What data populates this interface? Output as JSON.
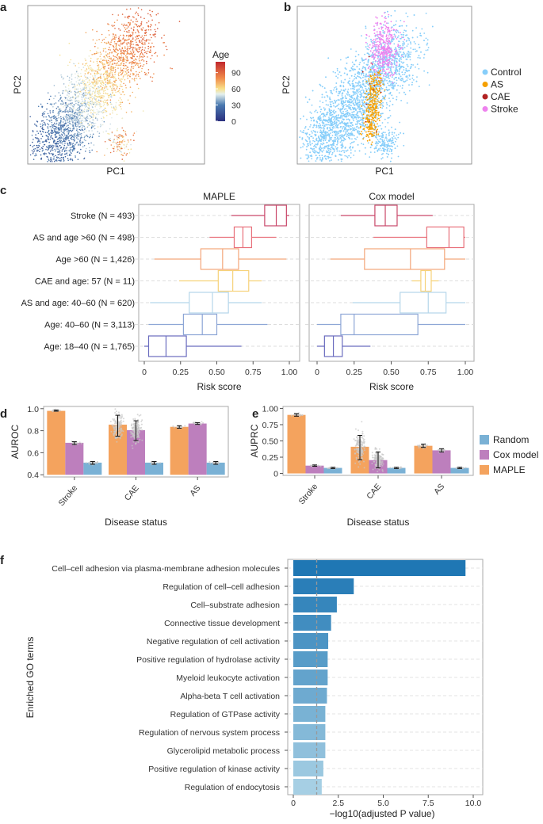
{
  "panel_labels": {
    "a": "a",
    "b": "b",
    "c": "c",
    "d": "d",
    "e": "e",
    "f": "f"
  },
  "chart_data": [
    {
      "panel": "a",
      "type": "scatter",
      "xlabel": "PC1",
      "ylabel": "PC2",
      "colorbar": {
        "title": "Age",
        "ticks": [
          "0",
          "30",
          "60",
          "90"
        ],
        "colors": [
          "#2b2f7e",
          "#4a7ab0",
          "#e4f0ee",
          "#f8e08a",
          "#f08a4a",
          "#c1272d"
        ]
      }
    },
    {
      "panel": "b",
      "type": "scatter",
      "xlabel": "PC1",
      "ylabel": "PC2",
      "legend": [
        {
          "name": "Control",
          "color": "#87cefa"
        },
        {
          "name": "AS",
          "color": "#f5a000"
        },
        {
          "name": "CAE",
          "color": "#b22222"
        },
        {
          "name": "Stroke",
          "color": "#ee82ee"
        }
      ]
    },
    {
      "panel": "c",
      "type": "box",
      "xlabel": "Risk score",
      "xticks": [
        "0",
        "0.25",
        "0.50",
        "0.75",
        "1.00"
      ],
      "xlim": [
        0,
        1
      ],
      "categories": [
        "Stroke (N = 493)",
        "AS and age >60 (N = 498)",
        "Age >60 (N = 1,426)",
        "CAE and age: 57 (N = 11)",
        "AS and age: 40–60 (N = 620)",
        "Age: 40–60 (N = 3,113)",
        "Age: 18–40 (N = 1,765)"
      ],
      "colors": [
        "#c9486a",
        "#e8707a",
        "#f4a67a",
        "#f6d27a",
        "#b5d6ea",
        "#8da6d6",
        "#6a6cbf"
      ],
      "facets": [
        {
          "title": "MAPLE",
          "boxes": [
            {
              "min": 0.6,
              "q1": 0.83,
              "median": 0.91,
              "q3": 0.98,
              "max": 1.0
            },
            {
              "min": 0.45,
              "q1": 0.62,
              "median": 0.68,
              "q3": 0.74,
              "max": 0.91
            },
            {
              "min": 0.07,
              "q1": 0.39,
              "median": 0.54,
              "q3": 0.65,
              "max": 0.98
            },
            {
              "min": 0.24,
              "q1": 0.51,
              "median": 0.61,
              "q3": 0.72,
              "max": 0.81
            },
            {
              "min": 0.04,
              "q1": 0.31,
              "median": 0.47,
              "q3": 0.58,
              "max": 0.81
            },
            {
              "min": 0.03,
              "q1": 0.27,
              "median": 0.4,
              "q3": 0.5,
              "max": 0.85
            },
            {
              "min": 0.0,
              "q1": 0.03,
              "median": 0.15,
              "q3": 0.29,
              "max": 0.67
            }
          ]
        },
        {
          "title": "Cox model",
          "boxes": [
            {
              "min": 0.16,
              "q1": 0.39,
              "median": 0.46,
              "q3": 0.54,
              "max": 0.78
            },
            {
              "min": 0.38,
              "q1": 0.74,
              "median": 0.89,
              "q3": 0.99,
              "max": 1.0
            },
            {
              "min": 0.09,
              "q1": 0.32,
              "median": 0.63,
              "q3": 0.86,
              "max": 1.0
            },
            {
              "min": 0.64,
              "q1": 0.7,
              "median": 0.73,
              "q3": 0.77,
              "max": 0.82
            },
            {
              "min": 0.24,
              "q1": 0.56,
              "median": 0.75,
              "q3": 0.87,
              "max": 1.0
            },
            {
              "min": 0.0,
              "q1": 0.16,
              "median": 0.25,
              "q3": 0.68,
              "max": 1.0
            },
            {
              "min": 0.0,
              "q1": 0.05,
              "median": 0.11,
              "q3": 0.17,
              "max": 0.36
            }
          ]
        }
      ]
    },
    {
      "panel": "d",
      "type": "bar",
      "ylabel": "AUROC",
      "xlabel": "Disease status",
      "categories": [
        "Stroke",
        "CAE",
        "AS"
      ],
      "ylim": [
        0.4,
        1.0
      ],
      "yticks": [
        "0.4",
        "0.6",
        "0.8",
        "1.0"
      ],
      "series": [
        {
          "name": "MAPLE",
          "color": "#f4a35e",
          "values": [
            0.98,
            0.855,
            0.835
          ],
          "ci": [
            [
              0.977,
              0.987
            ],
            [
              0.75,
              0.94
            ],
            [
              0.822,
              0.845
            ]
          ]
        },
        {
          "name": "Cox model",
          "color": "#bd7fbd",
          "values": [
            0.69,
            0.805,
            0.865
          ],
          "ci": [
            [
              0.675,
              0.7
            ],
            [
              0.71,
              0.89
            ],
            [
              0.857,
              0.873
            ]
          ]
        },
        {
          "name": "Random",
          "color": "#7ab1d5",
          "values": [
            0.51,
            0.51,
            0.51
          ],
          "ci": [
            [
              0.495,
              0.52
            ],
            [
              0.495,
              0.52
            ],
            [
              0.495,
              0.52
            ]
          ]
        }
      ]
    },
    {
      "panel": "e",
      "type": "bar",
      "ylabel": "AUPRC",
      "xlabel": "Disease status",
      "categories": [
        "Stroke",
        "CAE",
        "AS"
      ],
      "ylim": [
        0,
        1.0
      ],
      "yticks": [
        "0",
        "0.25",
        "0.50",
        "0.75",
        "1.00"
      ],
      "legend": [
        "Random",
        "Cox model",
        "MAPLE"
      ],
      "series": [
        {
          "name": "MAPLE",
          "color": "#f4a35e",
          "values": [
            0.9,
            0.41,
            0.425
          ],
          "ci": [
            [
              0.88,
              0.92
            ],
            [
              0.21,
              0.585
            ],
            [
              0.4,
              0.45
            ]
          ]
        },
        {
          "name": "Cox model",
          "color": "#bd7fbd",
          "values": [
            0.12,
            0.205,
            0.355
          ],
          "ci": [
            [
              0.11,
              0.13
            ],
            [
              0.085,
              0.33
            ],
            [
              0.33,
              0.38
            ]
          ]
        },
        {
          "name": "Random",
          "color": "#7ab1d5",
          "values": [
            0.085,
            0.085,
            0.085
          ],
          "ci": [
            [
              0.075,
              0.095
            ],
            [
              0.075,
              0.095
            ],
            [
              0.075,
              0.095
            ]
          ]
        }
      ]
    },
    {
      "panel": "f",
      "type": "bar",
      "orientation": "horizontal",
      "ylabel": "Enriched GO terms",
      "xlabel": "−log10(adjusted P value)",
      "xlim": [
        0,
        10
      ],
      "xticks": [
        "0",
        "2.5",
        "5.0",
        "7.5",
        "10.0"
      ],
      "threshold": 1.3,
      "categories": [
        "Cell–cell adhesion via plasma-membrane adhesion molecules",
        "Regulation of cell–cell adhesion",
        "Cell–substrate adhesion",
        "Connective tissue development",
        "Negative regulation of cell activation",
        "Positive regulation of hydrolase activity",
        "Myeloid leukocyte activation",
        "Alpha-beta T cell activation",
        "Regulation of GTPase activity",
        "Regulation of nervous system process",
        "Glycerolipid metabolic process",
        "Positive regulation of kinase activity",
        "Regulation of endocytosis"
      ],
      "values": [
        9.57,
        3.36,
        2.42,
        2.1,
        1.94,
        1.91,
        1.91,
        1.87,
        1.78,
        1.78,
        1.78,
        1.67,
        1.58
      ],
      "color_range": [
        "#1f77b4",
        "#a6cfe4"
      ]
    }
  ]
}
